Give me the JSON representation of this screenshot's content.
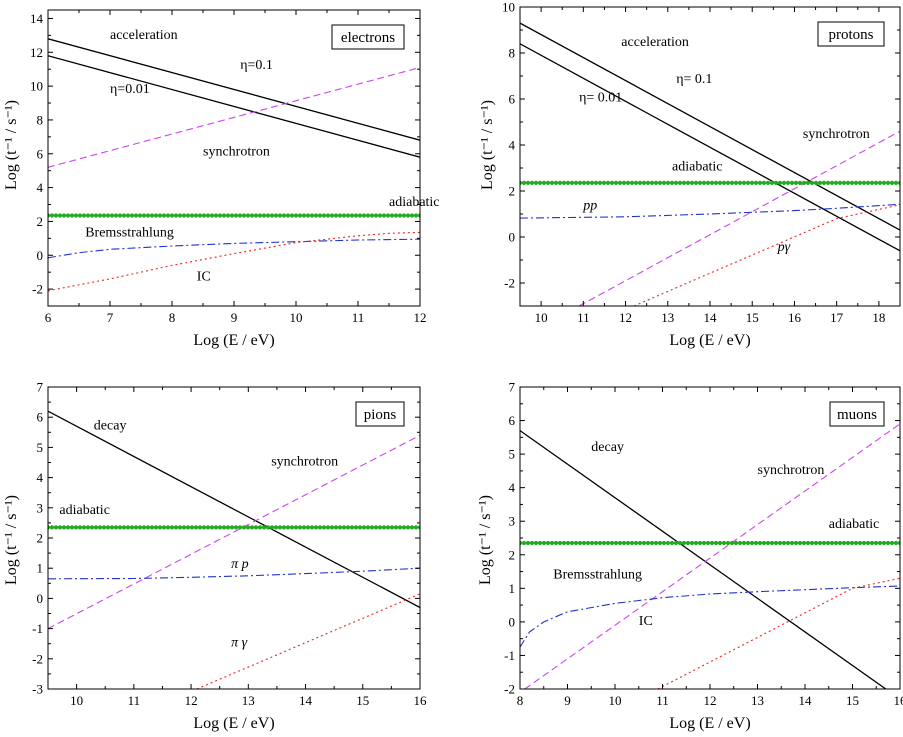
{
  "chart_data": [
    {
      "type": "line",
      "legend": "electrons",
      "xlabel": "Log (E / eV)",
      "ylabel": "Log (t⁻¹ / s⁻¹)",
      "xlim": [
        6,
        12
      ],
      "ylim": [
        -3,
        14.5
      ],
      "xticks": [
        6,
        7,
        8,
        9,
        10,
        11,
        12
      ],
      "yticks": [
        -2,
        0,
        2,
        4,
        6,
        8,
        10,
        12,
        14
      ],
      "series": [
        {
          "label": "acceleration η=0.1",
          "style": "solid",
          "color": "#000000",
          "x": [
            6,
            12
          ],
          "y": [
            12.8,
            6.8
          ]
        },
        {
          "label": "acceleration η=0.01",
          "style": "solid",
          "color": "#000000",
          "x": [
            6,
            12
          ],
          "y": [
            11.8,
            5.8
          ]
        },
        {
          "label": "synchrotron",
          "style": "dash",
          "color": "#cc44ee",
          "x": [
            6,
            12
          ],
          "y": [
            5.2,
            11.1
          ]
        },
        {
          "label": "adiabatic",
          "style": "dots",
          "color": "#22aa22",
          "x": [
            6,
            12
          ],
          "y": [
            2.35,
            2.35
          ]
        },
        {
          "label": "Bremsstrahlung",
          "style": "dashdot",
          "color": "#2233cc",
          "x": [
            6,
            6.5,
            7,
            8,
            9,
            10,
            11,
            12
          ],
          "y": [
            -0.15,
            0.15,
            0.35,
            0.55,
            0.7,
            0.8,
            0.9,
            0.95
          ]
        },
        {
          "label": "IC",
          "style": "dot",
          "color": "#ee2222",
          "x": [
            6,
            7,
            8,
            9,
            10,
            11,
            11.5,
            12
          ],
          "y": [
            -2.1,
            -1.4,
            -0.6,
            0.1,
            0.75,
            1.15,
            1.3,
            1.35
          ]
        }
      ],
      "annotations": [
        {
          "text": "acceleration",
          "x": 7.0,
          "y": 12.8
        },
        {
          "text": "η=0.1",
          "x": 9.1,
          "y": 11.0
        },
        {
          "text": "η=0.01",
          "x": 7.0,
          "y": 9.6
        },
        {
          "text": "synchrotron",
          "x": 8.5,
          "y": 5.9
        },
        {
          "text": "adiabatic",
          "x": 11.5,
          "y": 2.9
        },
        {
          "text": "Bremsstrahlung",
          "x": 6.6,
          "y": 1.1
        },
        {
          "text": "IC",
          "x": 8.4,
          "y": -1.5
        }
      ]
    },
    {
      "type": "line",
      "legend": "protons",
      "xlabel": "Log (E / eV)",
      "ylabel": "Log (t⁻¹ / s⁻¹)",
      "xlim": [
        9.5,
        18.5
      ],
      "ylim": [
        -3,
        10
      ],
      "xticks": [
        10,
        11,
        12,
        13,
        14,
        15,
        16,
        17,
        18
      ],
      "yticks": [
        -2,
        0,
        2,
        4,
        6,
        8,
        10
      ],
      "series": [
        {
          "label": "acceleration η= 0.1",
          "style": "solid",
          "color": "#000000",
          "x": [
            9.5,
            18.5
          ],
          "y": [
            9.3,
            0.3
          ]
        },
        {
          "label": "acceleration η= 0.01",
          "style": "solid",
          "color": "#000000",
          "x": [
            9.5,
            18.5
          ],
          "y": [
            8.4,
            -0.6
          ]
        },
        {
          "label": "synchrotron",
          "style": "dash",
          "color": "#cc44ee",
          "x": [
            10.9,
            18.5
          ],
          "y": [
            -3,
            4.6
          ]
        },
        {
          "label": "adiabatic",
          "style": "dots",
          "color": "#22aa22",
          "x": [
            9.5,
            18.5
          ],
          "y": [
            2.35,
            2.35
          ]
        },
        {
          "label": "pp",
          "style": "dashdot",
          "color": "#2233cc",
          "x": [
            9.5,
            12,
            14,
            16,
            17,
            18.5
          ],
          "y": [
            0.82,
            0.88,
            1.0,
            1.15,
            1.25,
            1.42
          ]
        },
        {
          "label": "pγ",
          "style": "dot",
          "color": "#ee2222",
          "x": [
            12.2,
            17,
            18.5
          ],
          "y": [
            -3,
            0.8,
            1.4
          ]
        }
      ],
      "annotations": [
        {
          "text": "acceleration",
          "x": 11.9,
          "y": 8.3
        },
        {
          "text": "η= 0.1",
          "x": 13.2,
          "y": 6.7
        },
        {
          "text": "η= 0.01",
          "x": 10.9,
          "y": 5.9
        },
        {
          "text": "synchrotron",
          "x": 16.2,
          "y": 4.3
        },
        {
          "text": "adiabatic",
          "x": 13.1,
          "y": 2.9
        },
        {
          "text": "pp",
          "x": 11.0,
          "y": 1.2,
          "italic": true
        },
        {
          "text": "pγ",
          "x": 15.6,
          "y": -0.6,
          "italic": true
        }
      ]
    },
    {
      "type": "line",
      "legend": "pions",
      "xlabel": "Log (E / eV)",
      "ylabel": "Log (t⁻¹ / s⁻¹)",
      "xlim": [
        9.5,
        16
      ],
      "ylim": [
        -3,
        7
      ],
      "xticks": [
        10,
        11,
        12,
        13,
        14,
        15,
        16
      ],
      "yticks": [
        -3,
        -2,
        -1,
        0,
        1,
        2,
        3,
        4,
        5,
        6,
        7
      ],
      "series": [
        {
          "label": "decay",
          "style": "solid",
          "color": "#000000",
          "x": [
            9.5,
            16
          ],
          "y": [
            6.2,
            -0.3
          ]
        },
        {
          "label": "synchrotron",
          "style": "dash",
          "color": "#cc44ee",
          "x": [
            9.5,
            16
          ],
          "y": [
            -1.0,
            5.4
          ]
        },
        {
          "label": "adiabatic",
          "style": "dots",
          "color": "#22aa22",
          "x": [
            9.5,
            16
          ],
          "y": [
            2.35,
            2.35
          ]
        },
        {
          "label": "π p",
          "style": "dashdot",
          "color": "#2233cc",
          "x": [
            9.5,
            11,
            12,
            13,
            14,
            15,
            16
          ],
          "y": [
            0.65,
            0.66,
            0.7,
            0.75,
            0.82,
            0.9,
            1.0
          ]
        },
        {
          "label": "π γ",
          "style": "dot",
          "color": "#ee2222",
          "x": [
            12.1,
            16
          ],
          "y": [
            -3,
            0.15
          ]
        }
      ],
      "annotations": [
        {
          "text": "decay",
          "x": 10.3,
          "y": 5.6
        },
        {
          "text": "synchrotron",
          "x": 13.4,
          "y": 4.4
        },
        {
          "text": "adiabatic",
          "x": 9.7,
          "y": 2.8
        },
        {
          "text": "π p",
          "x": 12.7,
          "y": 1.0,
          "italic": true
        },
        {
          "text": "π γ",
          "x": 12.7,
          "y": -1.6,
          "italic": true
        }
      ]
    },
    {
      "type": "line",
      "legend": "muons",
      "xlabel": "Log (E / eV)",
      "ylabel": "Log (t⁻¹ / s⁻¹)",
      "xlim": [
        8,
        16
      ],
      "ylim": [
        -2,
        7
      ],
      "xticks": [
        8,
        9,
        10,
        11,
        12,
        13,
        14,
        15,
        16
      ],
      "yticks": [
        -2,
        -1,
        0,
        1,
        2,
        3,
        4,
        5,
        6,
        7
      ],
      "series": [
        {
          "label": "decay",
          "style": "solid",
          "color": "#000000",
          "x": [
            8,
            15.7
          ],
          "y": [
            5.7,
            -2.0
          ]
        },
        {
          "label": "synchrotron",
          "style": "dash",
          "color": "#cc44ee",
          "x": [
            8.1,
            16
          ],
          "y": [
            -2.0,
            5.9
          ]
        },
        {
          "label": "adiabatic",
          "style": "dots",
          "color": "#22aa22",
          "x": [
            8,
            16
          ],
          "y": [
            2.35,
            2.35
          ]
        },
        {
          "label": "Bremsstrahlung",
          "style": "dashdot",
          "color": "#2233cc",
          "x": [
            8,
            8.2,
            8.5,
            9,
            10,
            11,
            12,
            13,
            14,
            15,
            16
          ],
          "y": [
            -0.75,
            -0.3,
            0.0,
            0.3,
            0.55,
            0.72,
            0.83,
            0.9,
            0.96,
            1.02,
            1.07
          ]
        },
        {
          "label": "IC",
          "style": "dot",
          "color": "#ee2222",
          "x": [
            10.9,
            15,
            16
          ],
          "y": [
            -2.0,
            1.0,
            1.3
          ]
        }
      ],
      "annotations": [
        {
          "text": "decay",
          "x": 9.5,
          "y": 5.1
        },
        {
          "text": "synchrotron",
          "x": 13.0,
          "y": 4.4
        },
        {
          "text": "adiabatic",
          "x": 14.5,
          "y": 2.8
        },
        {
          "text": "Bremsstrahlung",
          "x": 8.7,
          "y": 1.3
        },
        {
          "text": "IC",
          "x": 10.5,
          "y": -0.1
        }
      ]
    }
  ]
}
